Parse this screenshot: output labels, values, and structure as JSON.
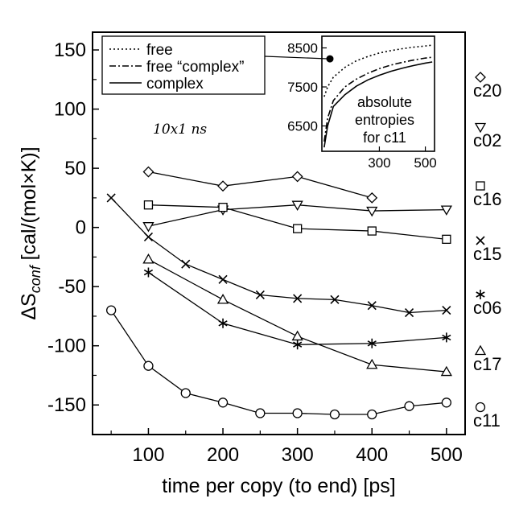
{
  "chart_data": {
    "type": "line",
    "xlabel": "time per copy (to end) [ps]",
    "ylabel": {
      "prefix": "ΔS",
      "sub": "conf",
      "suffix": " [cal/(mol×K)]"
    },
    "xlim": [
      25,
      525
    ],
    "ylim": [
      -175,
      165
    ],
    "xticks": [
      100,
      200,
      300,
      400,
      500
    ],
    "yticks": [
      150,
      100,
      50,
      0,
      -50,
      -100,
      -150
    ],
    "annotation": "10x1 ns",
    "legend": {
      "placement": "top-left",
      "entries": [
        {
          "label": "free",
          "style": "dotted"
        },
        {
          "label": "free “complex”",
          "style": "dashdot"
        },
        {
          "label": "complex",
          "style": "solid"
        }
      ]
    },
    "series": [
      {
        "name": "c20",
        "marker": "diamond",
        "x": [
          100,
          200,
          300,
          400
        ],
        "values": [
          47,
          35,
          43,
          25
        ]
      },
      {
        "name": "c02",
        "marker": "triangle-down",
        "x": [
          100,
          200,
          300,
          400,
          500
        ],
        "values": [
          1,
          15,
          19,
          14,
          15
        ]
      },
      {
        "name": "c16",
        "marker": "square",
        "x": [
          100,
          200,
          300,
          400,
          500
        ],
        "values": [
          19,
          17,
          -1,
          -3,
          -10
        ]
      },
      {
        "name": "c15",
        "marker": "x",
        "x": [
          50,
          100,
          150,
          200,
          250,
          300,
          350,
          400,
          450,
          500
        ],
        "values": [
          25,
          -8,
          -31,
          -44,
          -57,
          -60,
          -61,
          -66,
          -72,
          -70
        ]
      },
      {
        "name": "c06",
        "marker": "asterisk",
        "x": [
          100,
          200,
          300,
          400,
          500
        ],
        "values": [
          -38,
          -81,
          -99,
          -98,
          -93
        ]
      },
      {
        "name": "c17",
        "marker": "triangle-up",
        "x": [
          100,
          200,
          300,
          400,
          500
        ],
        "values": [
          -27,
          -61,
          -92,
          -116,
          -122
        ]
      },
      {
        "name": "c11",
        "marker": "circle",
        "x": [
          50,
          100,
          150,
          200,
          250,
          300,
          350,
          400,
          450,
          500
        ],
        "values": [
          -70,
          -117,
          -140,
          -148,
          -157,
          -157,
          -158,
          -158,
          -151,
          -148
        ]
      }
    ],
    "inset": {
      "xticks": [
        300,
        500
      ],
      "yticks": [
        8500,
        7500,
        6500
      ],
      "xlim": [
        50,
        540
      ],
      "ylim": [
        5850,
        8800
      ],
      "text": [
        "absolute",
        "entropies",
        "for c11"
      ],
      "callout_point": [
        85,
        8220
      ],
      "curves": [
        {
          "style": "dotted",
          "x": [
            60,
            75,
            100,
            150,
            200,
            250,
            300,
            350,
            400,
            450,
            500,
            530
          ],
          "values": [
            7250,
            7500,
            7750,
            8000,
            8170,
            8280,
            8370,
            8430,
            8480,
            8520,
            8550,
            8570
          ]
        },
        {
          "style": "dashdot",
          "x": [
            60,
            75,
            100,
            150,
            200,
            250,
            300,
            350,
            400,
            450,
            500,
            530
          ],
          "values": [
            6100,
            6700,
            7150,
            7500,
            7700,
            7850,
            7970,
            8060,
            8130,
            8190,
            8240,
            8260
          ]
        },
        {
          "style": "solid",
          "x": [
            60,
            75,
            100,
            150,
            200,
            250,
            300,
            350,
            400,
            450,
            500,
            530
          ],
          "values": [
            5950,
            6500,
            7000,
            7300,
            7520,
            7680,
            7800,
            7900,
            7980,
            8050,
            8110,
            8140
          ]
        }
      ]
    }
  }
}
